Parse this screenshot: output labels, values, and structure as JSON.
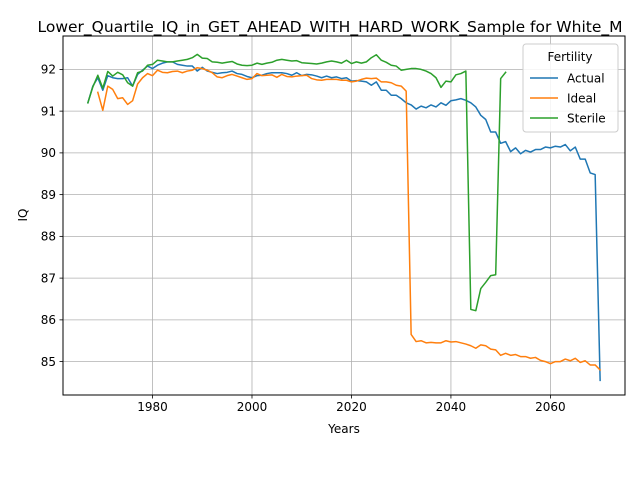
{
  "chart_data": {
    "type": "line",
    "title": "Lower_Quartile_IQ_in_GET_AHEAD_WITH_HARD_WORK_Sample for White_M",
    "xlabel": "Years",
    "ylabel": "IQ",
    "xlim": [
      1962,
      2075
    ],
    "ylim": [
      84.2,
      92.8
    ],
    "x_ticks": [
      1980,
      2000,
      2020,
      2040,
      2060
    ],
    "y_ticks": [
      85,
      86,
      87,
      88,
      89,
      90,
      91,
      92
    ],
    "grid": true,
    "legend": {
      "title": "Fertility",
      "placement": "top-right"
    },
    "series": [
      {
        "name": "Actual",
        "color": "#1f77b4",
        "points": [
          [
            1967,
            91.2
          ],
          [
            1968,
            91.6
          ],
          [
            1969,
            91.8
          ],
          [
            1970,
            91.5
          ],
          [
            1971,
            91.85
          ],
          [
            1972,
            91.8
          ],
          [
            1973,
            91.78
          ],
          [
            1974,
            91.78
          ],
          [
            1975,
            91.8
          ],
          [
            1976,
            91.6
          ],
          [
            1977,
            91.88
          ],
          [
            1978,
            91.98
          ],
          [
            1979,
            92.08
          ],
          [
            1980,
            92.02
          ],
          [
            1981,
            92.1
          ],
          [
            1982,
            92.15
          ],
          [
            1983,
            92.18
          ],
          [
            1984,
            92.18
          ],
          [
            1985,
            92.12
          ],
          [
            1986,
            92.1
          ],
          [
            1987,
            92.08
          ],
          [
            1988,
            92.08
          ],
          [
            1989,
            91.96
          ],
          [
            1990,
            92.05
          ],
          [
            1991,
            91.96
          ],
          [
            1992,
            91.93
          ],
          [
            1993,
            91.9
          ],
          [
            1994,
            91.92
          ],
          [
            1995,
            91.93
          ],
          [
            1996,
            91.96
          ],
          [
            1997,
            91.9
          ],
          [
            1998,
            91.88
          ],
          [
            1999,
            91.83
          ],
          [
            2000,
            91.8
          ],
          [
            2001,
            91.85
          ],
          [
            2002,
            91.86
          ],
          [
            2003,
            91.9
          ],
          [
            2004,
            91.92
          ],
          [
            2005,
            91.92
          ],
          [
            2006,
            91.92
          ],
          [
            2007,
            91.9
          ],
          [
            2008,
            91.86
          ],
          [
            2009,
            91.92
          ],
          [
            2010,
            91.85
          ],
          [
            2011,
            91.88
          ],
          [
            2012,
            91.87
          ],
          [
            2013,
            91.84
          ],
          [
            2014,
            91.8
          ],
          [
            2015,
            91.84
          ],
          [
            2016,
            91.8
          ],
          [
            2017,
            91.82
          ],
          [
            2018,
            91.78
          ],
          [
            2019,
            91.8
          ],
          [
            2020,
            91.72
          ],
          [
            2021,
            91.73
          ],
          [
            2022,
            91.72
          ],
          [
            2023,
            91.7
          ],
          [
            2024,
            91.62
          ],
          [
            2025,
            91.7
          ],
          [
            2026,
            91.5
          ],
          [
            2027,
            91.5
          ],
          [
            2028,
            91.38
          ],
          [
            2029,
            91.38
          ],
          [
            2030,
            91.3
          ],
          [
            2031,
            91.2
          ],
          [
            2032,
            91.15
          ],
          [
            2033,
            91.05
          ],
          [
            2034,
            91.12
          ],
          [
            2035,
            91.08
          ],
          [
            2036,
            91.15
          ],
          [
            2037,
            91.1
          ],
          [
            2038,
            91.2
          ],
          [
            2039,
            91.14
          ],
          [
            2040,
            91.25
          ],
          [
            2041,
            91.27
          ],
          [
            2042,
            91.3
          ],
          [
            2043,
            91.26
          ],
          [
            2044,
            91.2
          ],
          [
            2045,
            91.1
          ],
          [
            2046,
            90.9
          ],
          [
            2047,
            90.8
          ],
          [
            2048,
            90.5
          ],
          [
            2049,
            90.5
          ],
          [
            2050,
            90.23
          ],
          [
            2051,
            90.27
          ],
          [
            2052,
            90.03
          ],
          [
            2053,
            90.12
          ],
          [
            2054,
            89.98
          ],
          [
            2055,
            90.06
          ],
          [
            2056,
            90.02
          ],
          [
            2057,
            90.08
          ],
          [
            2058,
            90.08
          ],
          [
            2059,
            90.14
          ],
          [
            2060,
            90.12
          ],
          [
            2061,
            90.16
          ],
          [
            2062,
            90.14
          ],
          [
            2063,
            90.2
          ],
          [
            2064,
            90.05
          ],
          [
            2065,
            90.14
          ],
          [
            2066,
            89.85
          ],
          [
            2067,
            89.85
          ],
          [
            2068,
            89.52
          ],
          [
            2069,
            89.48
          ],
          [
            2070,
            84.55
          ]
        ]
      },
      {
        "name": "Ideal",
        "color": "#ff7f0e",
        "points": [
          [
            1969,
            91.45
          ],
          [
            1970,
            91.02
          ],
          [
            1971,
            91.6
          ],
          [
            1972,
            91.52
          ],
          [
            1973,
            91.3
          ],
          [
            1974,
            91.32
          ],
          [
            1975,
            91.16
          ],
          [
            1976,
            91.25
          ],
          [
            1977,
            91.65
          ],
          [
            1978,
            91.8
          ],
          [
            1979,
            91.9
          ],
          [
            1980,
            91.85
          ],
          [
            1981,
            91.98
          ],
          [
            1982,
            91.93
          ],
          [
            1983,
            91.92
          ],
          [
            1984,
            91.95
          ],
          [
            1985,
            91.96
          ],
          [
            1986,
            91.92
          ],
          [
            1987,
            91.96
          ],
          [
            1988,
            91.98
          ],
          [
            1989,
            92.04
          ],
          [
            1990,
            92.02
          ],
          [
            1991,
            91.98
          ],
          [
            1992,
            91.92
          ],
          [
            1993,
            91.82
          ],
          [
            1994,
            91.8
          ],
          [
            1995,
            91.85
          ],
          [
            1996,
            91.88
          ],
          [
            1997,
            91.84
          ],
          [
            1998,
            91.8
          ],
          [
            1999,
            91.76
          ],
          [
            2000,
            91.78
          ],
          [
            2001,
            91.9
          ],
          [
            2002,
            91.85
          ],
          [
            2003,
            91.86
          ],
          [
            2004,
            91.87
          ],
          [
            2005,
            91.81
          ],
          [
            2006,
            91.88
          ],
          [
            2007,
            91.83
          ],
          [
            2008,
            91.82
          ],
          [
            2009,
            91.84
          ],
          [
            2010,
            91.85
          ],
          [
            2011,
            91.86
          ],
          [
            2012,
            91.78
          ],
          [
            2013,
            91.75
          ],
          [
            2014,
            91.74
          ],
          [
            2015,
            91.76
          ],
          [
            2016,
            91.76
          ],
          [
            2017,
            91.76
          ],
          [
            2018,
            91.74
          ],
          [
            2019,
            91.74
          ],
          [
            2020,
            91.7
          ],
          [
            2021,
            91.72
          ],
          [
            2022,
            91.76
          ],
          [
            2023,
            91.79
          ],
          [
            2024,
            91.78
          ],
          [
            2025,
            91.79
          ],
          [
            2026,
            91.7
          ],
          [
            2027,
            91.7
          ],
          [
            2028,
            91.68
          ],
          [
            2029,
            91.62
          ],
          [
            2030,
            91.6
          ],
          [
            2031,
            91.48
          ],
          [
            2032,
            85.65
          ],
          [
            2033,
            85.48
          ],
          [
            2034,
            85.5
          ],
          [
            2035,
            85.45
          ],
          [
            2036,
            85.46
          ],
          [
            2037,
            85.45
          ],
          [
            2038,
            85.45
          ],
          [
            2039,
            85.5
          ],
          [
            2040,
            85.47
          ],
          [
            2041,
            85.48
          ],
          [
            2042,
            85.45
          ],
          [
            2043,
            85.42
          ],
          [
            2044,
            85.38
          ],
          [
            2045,
            85.32
          ],
          [
            2046,
            85.4
          ],
          [
            2047,
            85.38
          ],
          [
            2048,
            85.3
          ],
          [
            2049,
            85.28
          ],
          [
            2050,
            85.15
          ],
          [
            2051,
            85.2
          ],
          [
            2052,
            85.15
          ],
          [
            2053,
            85.17
          ],
          [
            2054,
            85.12
          ],
          [
            2055,
            85.12
          ],
          [
            2056,
            85.08
          ],
          [
            2057,
            85.1
          ],
          [
            2058,
            85.03
          ],
          [
            2059,
            85.0
          ],
          [
            2060,
            84.95
          ],
          [
            2061,
            85.0
          ],
          [
            2062,
            85.0
          ],
          [
            2063,
            85.06
          ],
          [
            2064,
            85.02
          ],
          [
            2065,
            85.08
          ],
          [
            2066,
            84.98
          ],
          [
            2067,
            85.02
          ],
          [
            2068,
            84.92
          ],
          [
            2069,
            84.92
          ],
          [
            2070,
            84.8
          ]
        ]
      },
      {
        "name": "Sterile",
        "color": "#2ca02c",
        "points": [
          [
            1967,
            91.2
          ],
          [
            1968,
            91.58
          ],
          [
            1969,
            91.86
          ],
          [
            1970,
            91.55
          ],
          [
            1971,
            91.95
          ],
          [
            1972,
            91.84
          ],
          [
            1973,
            91.93
          ],
          [
            1974,
            91.87
          ],
          [
            1975,
            91.68
          ],
          [
            1976,
            91.6
          ],
          [
            1977,
            91.92
          ],
          [
            1978,
            91.96
          ],
          [
            1979,
            92.1
          ],
          [
            1980,
            92.12
          ],
          [
            1981,
            92.22
          ],
          [
            1982,
            92.2
          ],
          [
            1983,
            92.18
          ],
          [
            1984,
            92.18
          ],
          [
            1985,
            92.2
          ],
          [
            1986,
            92.22
          ],
          [
            1987,
            92.24
          ],
          [
            1988,
            92.28
          ],
          [
            1989,
            92.36
          ],
          [
            1990,
            92.27
          ],
          [
            1991,
            92.26
          ],
          [
            1992,
            92.18
          ],
          [
            1993,
            92.17
          ],
          [
            1994,
            92.15
          ],
          [
            1995,
            92.17
          ],
          [
            1996,
            92.19
          ],
          [
            1997,
            92.13
          ],
          [
            1998,
            92.1
          ],
          [
            1999,
            92.09
          ],
          [
            2000,
            92.1
          ],
          [
            2001,
            92.15
          ],
          [
            2002,
            92.12
          ],
          [
            2003,
            92.15
          ],
          [
            2004,
            92.17
          ],
          [
            2005,
            92.22
          ],
          [
            2006,
            92.24
          ],
          [
            2007,
            92.22
          ],
          [
            2008,
            92.2
          ],
          [
            2009,
            92.21
          ],
          [
            2010,
            92.16
          ],
          [
            2011,
            92.15
          ],
          [
            2012,
            92.14
          ],
          [
            2013,
            92.13
          ],
          [
            2014,
            92.15
          ],
          [
            2015,
            92.18
          ],
          [
            2016,
            92.2
          ],
          [
            2017,
            92.18
          ],
          [
            2018,
            92.15
          ],
          [
            2019,
            92.22
          ],
          [
            2020,
            92.14
          ],
          [
            2021,
            92.18
          ],
          [
            2022,
            92.15
          ],
          [
            2023,
            92.18
          ],
          [
            2024,
            92.28
          ],
          [
            2025,
            92.35
          ],
          [
            2026,
            92.22
          ],
          [
            2027,
            92.17
          ],
          [
            2028,
            92.1
          ],
          [
            2029,
            92.08
          ],
          [
            2030,
            91.98
          ],
          [
            2031,
            92.0
          ],
          [
            2032,
            92.02
          ],
          [
            2033,
            92.02
          ],
          [
            2034,
            92.0
          ],
          [
            2035,
            91.96
          ],
          [
            2036,
            91.9
          ],
          [
            2037,
            91.8
          ],
          [
            2038,
            91.57
          ],
          [
            2039,
            91.72
          ],
          [
            2040,
            91.7
          ],
          [
            2041,
            91.87
          ],
          [
            2042,
            91.9
          ],
          [
            2043,
            91.96
          ],
          [
            2044,
            86.25
          ],
          [
            2045,
            86.22
          ],
          [
            2046,
            86.75
          ],
          [
            2047,
            86.9
          ],
          [
            2048,
            87.06
          ],
          [
            2049,
            87.08
          ],
          [
            2050,
            91.78
          ],
          [
            2051,
            91.93
          ]
        ]
      }
    ]
  }
}
